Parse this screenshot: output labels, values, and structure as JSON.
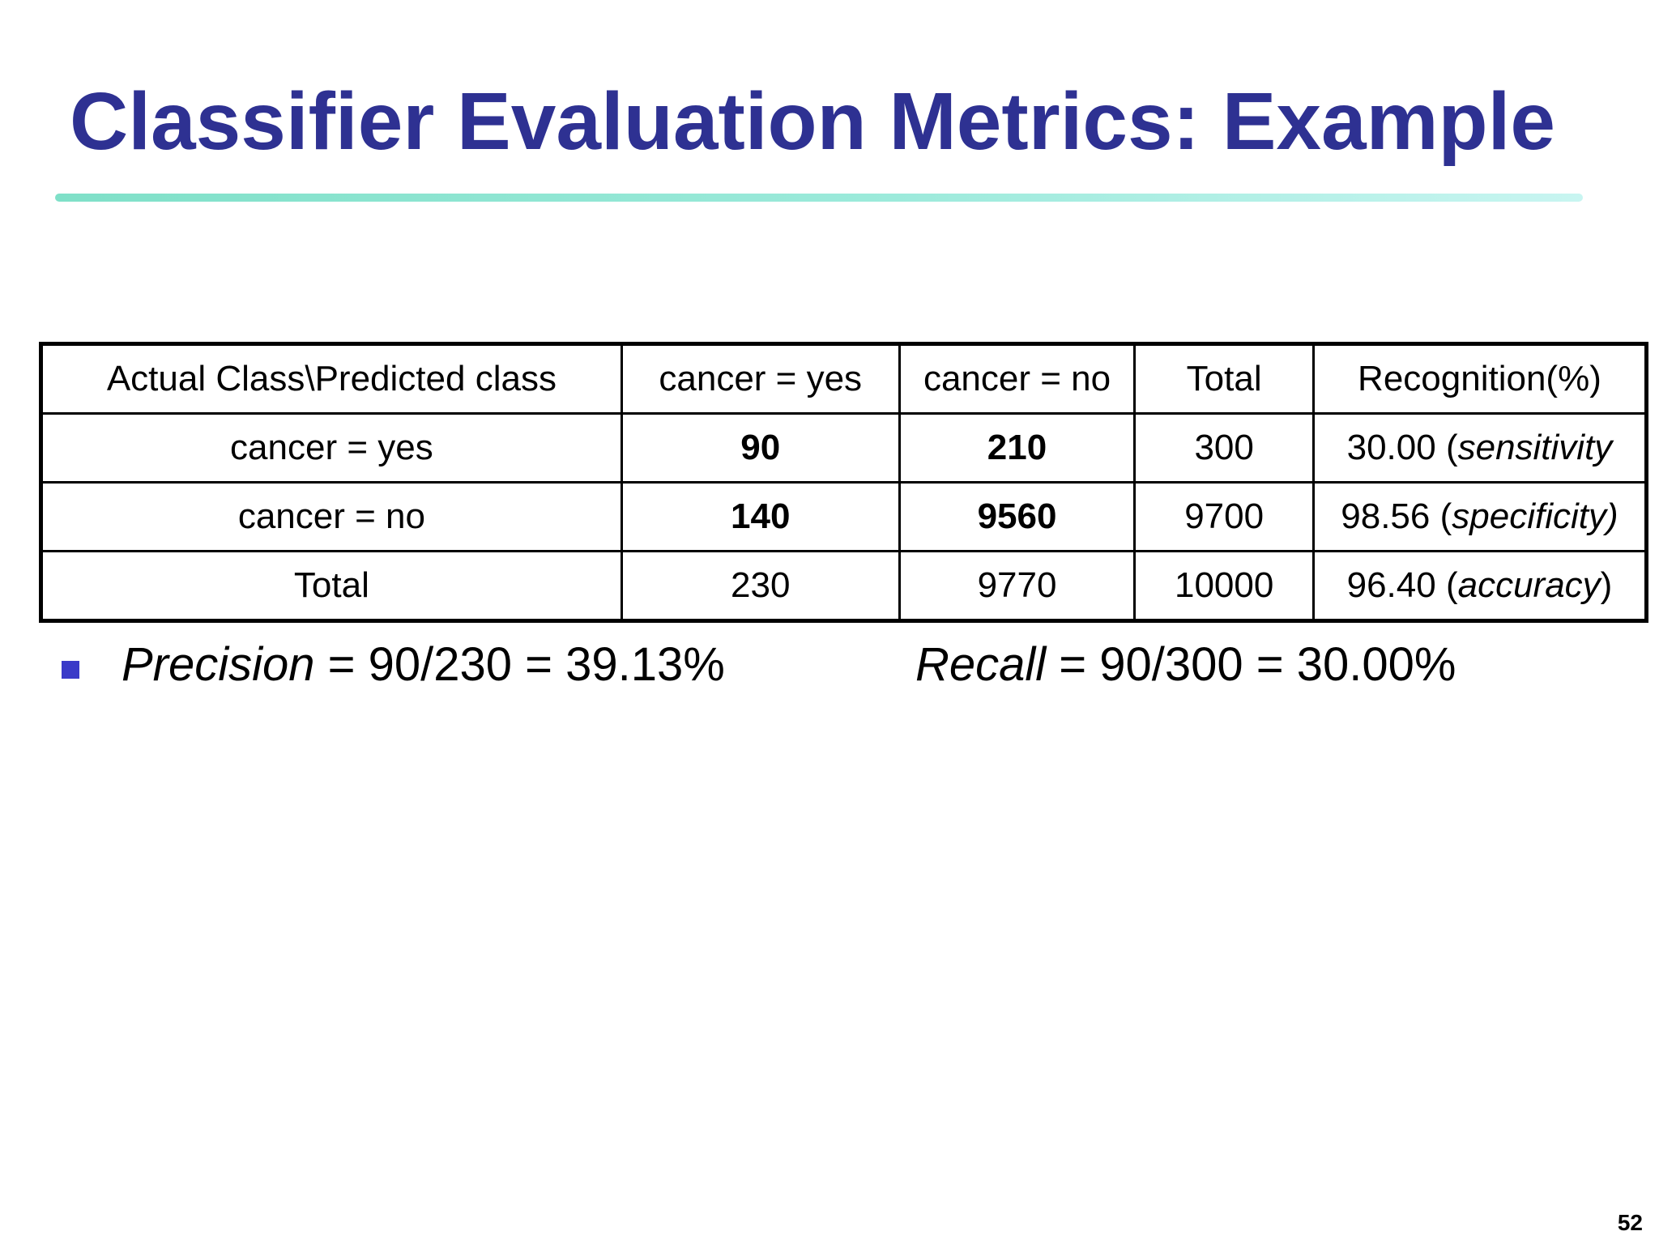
{
  "slide": {
    "title": "Classifier Evaluation Metrics: Example",
    "page_number": "52",
    "title_color": "#2e3192",
    "rule_color": "#9ceadb",
    "bullet_color": "#3a3ac8"
  },
  "table": {
    "header": {
      "corner": "Actual Class\\Predicted class",
      "col_yes": "cancer = yes",
      "col_no": "cancer = no",
      "col_total": "Total",
      "col_recognition": "Recognition(%)"
    },
    "rows": [
      {
        "label": "cancer = yes",
        "pred_yes": "90",
        "pred_no": "210",
        "total": "300",
        "recognition_value": "30.00",
        "recognition_open": "(",
        "recognition_term": "sensitivity",
        "recognition_close": ""
      },
      {
        "label": "cancer = no",
        "pred_yes": "140",
        "pred_no": "9560",
        "total": "9700",
        "recognition_value": "98.56",
        "recognition_open": "(",
        "recognition_term": "specificity)",
        "recognition_close": ""
      },
      {
        "label": "Total",
        "pred_yes": "230",
        "pred_no": "9770",
        "total": "10000",
        "recognition_value": "96.40",
        "recognition_open": "(",
        "recognition_term": "accuracy",
        "recognition_close": ")"
      }
    ]
  },
  "metrics": {
    "precision": {
      "name": "Precision",
      "formula": " = 90/230 = 39.13%"
    },
    "recall": {
      "name": "Recall",
      "formula": " = 90/300 = 30.00%"
    }
  }
}
